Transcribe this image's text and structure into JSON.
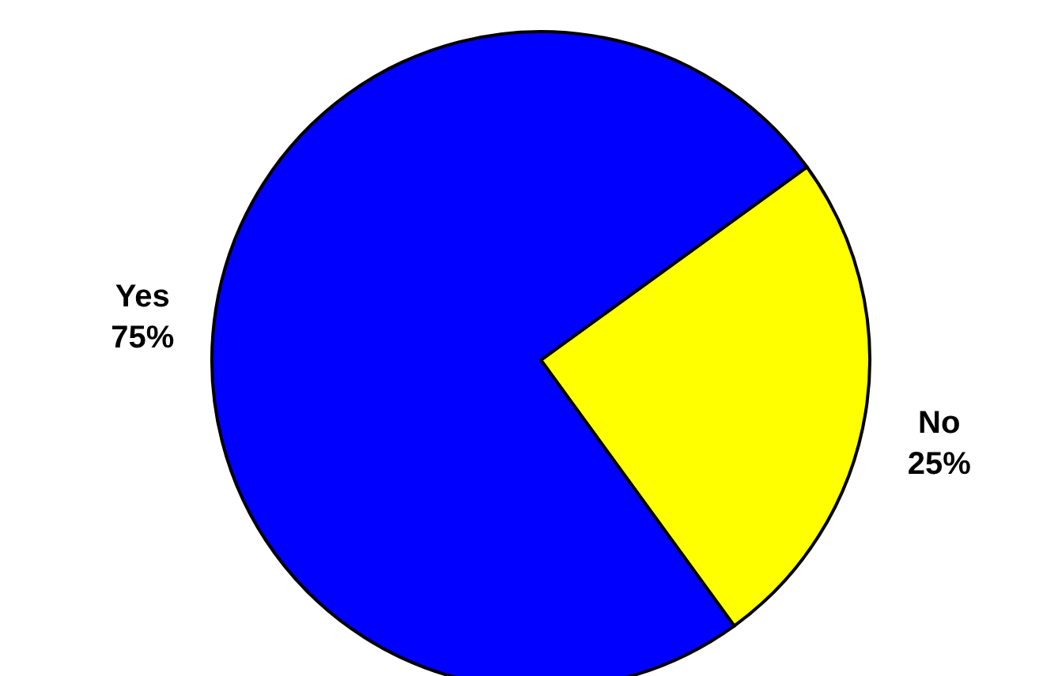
{
  "chart_data": {
    "type": "pie",
    "categories": [
      "No",
      "Yes"
    ],
    "values": [
      25,
      75
    ],
    "colors": [
      "#ffff00",
      "#0000ff"
    ],
    "value_labels": [
      "25%",
      "75%"
    ]
  }
}
